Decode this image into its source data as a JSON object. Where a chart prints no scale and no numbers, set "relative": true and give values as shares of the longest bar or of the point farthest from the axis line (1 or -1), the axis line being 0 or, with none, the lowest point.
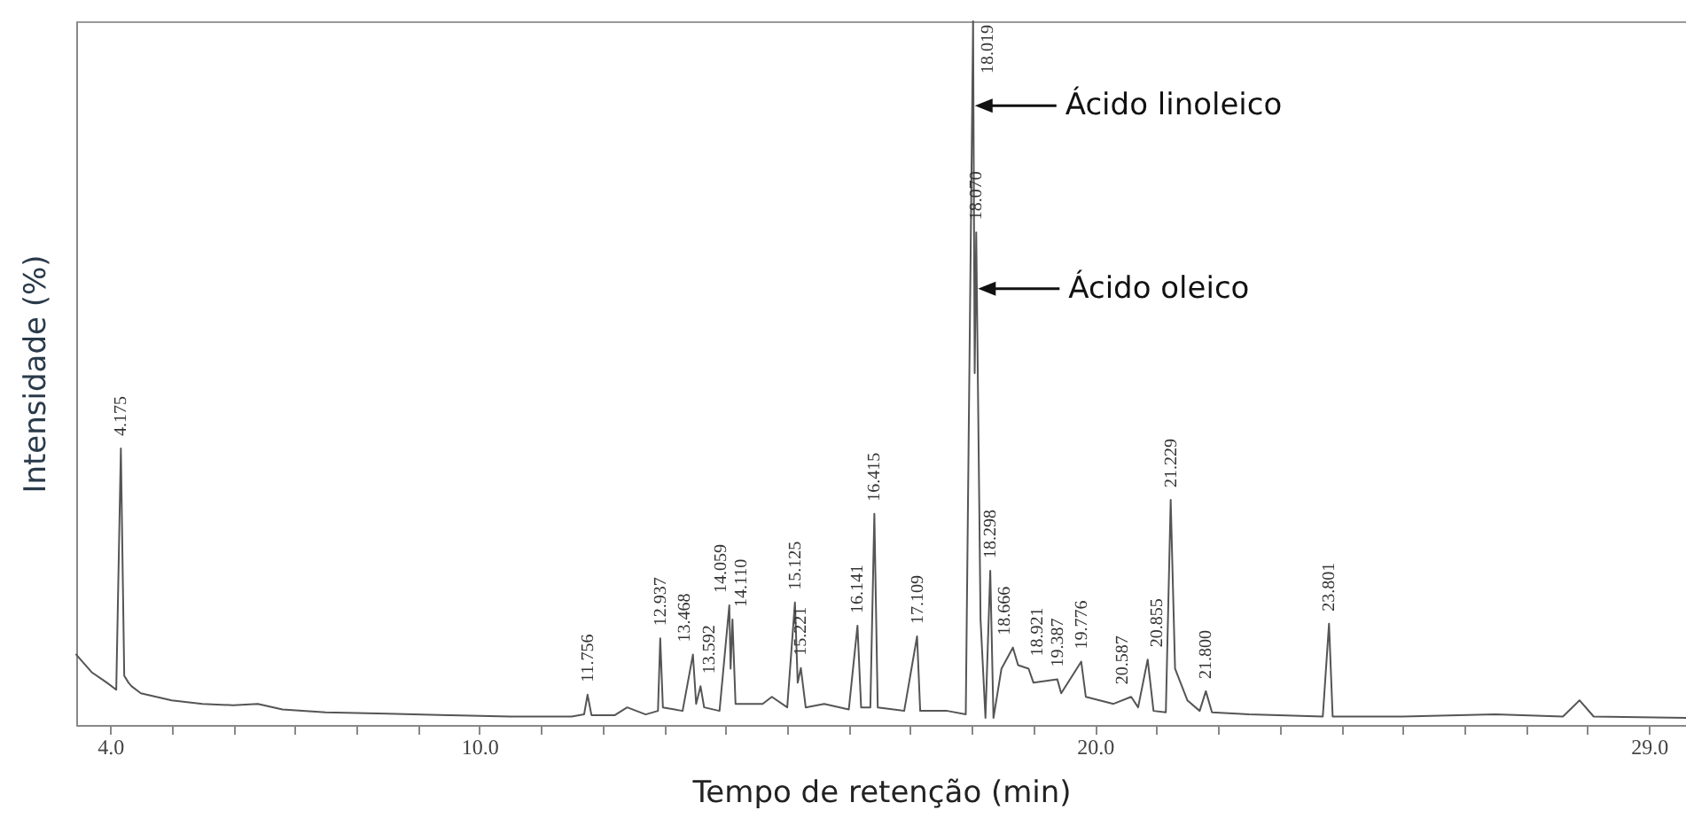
{
  "chart_data": {
    "type": "line",
    "relative": true,
    "xlabel": "Tempo de retenção (min)",
    "ylabel": "Intensidade (%)",
    "xlim": [
      3.45,
      29.6
    ],
    "xticks": [
      {
        "value": 4,
        "label": "4.0"
      },
      {
        "value": 5,
        "label": null
      },
      {
        "value": 6,
        "label": null
      },
      {
        "value": 7,
        "label": null
      },
      {
        "value": 8,
        "label": null
      },
      {
        "value": 9,
        "label": null
      },
      {
        "value": 10,
        "label": "10.0"
      },
      {
        "value": 11,
        "label": null
      },
      {
        "value": 12,
        "label": null
      },
      {
        "value": 13,
        "label": null
      },
      {
        "value": 14,
        "label": null
      },
      {
        "value": 15,
        "label": null
      },
      {
        "value": 16,
        "label": null
      },
      {
        "value": 17,
        "label": null
      },
      {
        "value": 18,
        "label": null
      },
      {
        "value": 19,
        "label": null
      },
      {
        "value": 20,
        "label": "20.0"
      },
      {
        "value": 21,
        "label": null
      },
      {
        "value": 22,
        "label": null
      },
      {
        "value": 23,
        "label": null
      },
      {
        "value": 24,
        "label": null
      },
      {
        "value": 25,
        "label": null
      },
      {
        "value": 26,
        "label": null
      },
      {
        "value": 27,
        "label": null
      },
      {
        "value": 28,
        "label": null
      },
      {
        "value": 29,
        "label": "29.0"
      }
    ],
    "series": [
      {
        "color": "#555555",
        "x": [
          3.45,
          3.7,
          3.95,
          4.1,
          4.175,
          4.23,
          4.3,
          4.35,
          4.5,
          5.0,
          5.5,
          6.0,
          6.4,
          6.8,
          7.5,
          8.5,
          9.5,
          10.5,
          11.5,
          11.7,
          11.756,
          11.82,
          12.2,
          12.4,
          12.7,
          12.9,
          12.937,
          12.98,
          13.3,
          13.468,
          13.52,
          13.592,
          13.65,
          13.9,
          14.059,
          14.08,
          14.11,
          14.16,
          14.6,
          14.75,
          15.0,
          15.125,
          15.17,
          15.221,
          15.3,
          15.6,
          16.0,
          16.141,
          16.2,
          16.35,
          16.415,
          16.47,
          16.9,
          17.109,
          17.16,
          17.6,
          17.9,
          18.019,
          18.045,
          18.07,
          18.14,
          18.22,
          18.298,
          18.35,
          18.48,
          18.666,
          18.75,
          18.921,
          19.0,
          19.387,
          19.45,
          19.776,
          19.85,
          20.3,
          20.587,
          20.7,
          20.855,
          20.95,
          21.15,
          21.229,
          21.3,
          21.5,
          21.7,
          21.8,
          21.9,
          22.5,
          23.7,
          23.801,
          23.86,
          25.0,
          26.5,
          27.6,
          27.87,
          28.1,
          29.6
        ],
        "values": [
          0.1,
          0.075,
          0.06,
          0.05,
          0.393,
          0.07,
          0.06,
          0.055,
          0.045,
          0.035,
          0.03,
          0.028,
          0.03,
          0.022,
          0.018,
          0.016,
          0.014,
          0.012,
          0.012,
          0.015,
          0.043,
          0.014,
          0.014,
          0.025,
          0.015,
          0.02,
          0.123,
          0.025,
          0.02,
          0.1,
          0.03,
          0.055,
          0.025,
          0.02,
          0.17,
          0.08,
          0.15,
          0.03,
          0.03,
          0.04,
          0.025,
          0.174,
          0.06,
          0.081,
          0.025,
          0.03,
          0.022,
          0.141,
          0.025,
          0.025,
          0.3,
          0.025,
          0.02,
          0.126,
          0.02,
          0.02,
          0.015,
          1.0,
          0.5,
          0.7,
          0.15,
          0.01,
          0.219,
          0.01,
          0.08,
          0.11,
          0.085,
          0.08,
          0.06,
          0.065,
          0.045,
          0.09,
          0.04,
          0.03,
          0.04,
          0.025,
          0.093,
          0.02,
          0.018,
          0.32,
          0.08,
          0.035,
          0.02,
          0.048,
          0.018,
          0.015,
          0.012,
          0.144,
          0.012,
          0.012,
          0.015,
          0.012,
          0.035,
          0.012,
          0.01
        ]
      }
    ],
    "annotations": [
      {
        "text": "4.175",
        "x": 4.175,
        "y": 0.393
      },
      {
        "text": "11.756",
        "x": 11.756,
        "y": 0.043
      },
      {
        "text": "12.937",
        "x": 12.937,
        "y": 0.123
      },
      {
        "text": "13.468",
        "x": 13.468,
        "y": 0.1
      },
      {
        "text": "13.592",
        "x": 13.592,
        "y": 0.055
      },
      {
        "text": "14.059",
        "x": 14.059,
        "y": 0.17
      },
      {
        "text": "14.110",
        "x": 14.11,
        "y": 0.15
      },
      {
        "text": "15.125",
        "x": 15.125,
        "y": 0.174
      },
      {
        "text": "15.221",
        "x": 15.221,
        "y": 0.081
      },
      {
        "text": "16.141",
        "x": 16.141,
        "y": 0.141
      },
      {
        "text": "16.415",
        "x": 16.415,
        "y": 0.3
      },
      {
        "text": "17.109",
        "x": 17.109,
        "y": 0.126
      },
      {
        "text": "18.019",
        "x": 18.019,
        "y": 1.0
      },
      {
        "text": "18.070",
        "x": 18.07,
        "y": 0.7
      },
      {
        "text": "18.298",
        "x": 18.298,
        "y": 0.219
      },
      {
        "text": "18.666",
        "x": 18.666,
        "y": 0.11
      },
      {
        "text": "18.921",
        "x": 18.921,
        "y": 0.08
      },
      {
        "text": "19.387",
        "x": 19.387,
        "y": 0.065
      },
      {
        "text": "19.776",
        "x": 19.776,
        "y": 0.09
      },
      {
        "text": "20.587",
        "x": 20.587,
        "y": 0.04
      },
      {
        "text": "20.855",
        "x": 20.855,
        "y": 0.093
      },
      {
        "text": "21.229",
        "x": 21.229,
        "y": 0.32
      },
      {
        "text": "21.800",
        "x": 21.8,
        "y": 0.048
      },
      {
        "text": "23.801",
        "x": 23.801,
        "y": 0.144
      },
      {
        "text": "Ácido linoleico",
        "x": 18.019,
        "y": 0.88
      },
      {
        "text": "Ácido oleico",
        "x": 18.07,
        "y": 0.62
      }
    ]
  }
}
